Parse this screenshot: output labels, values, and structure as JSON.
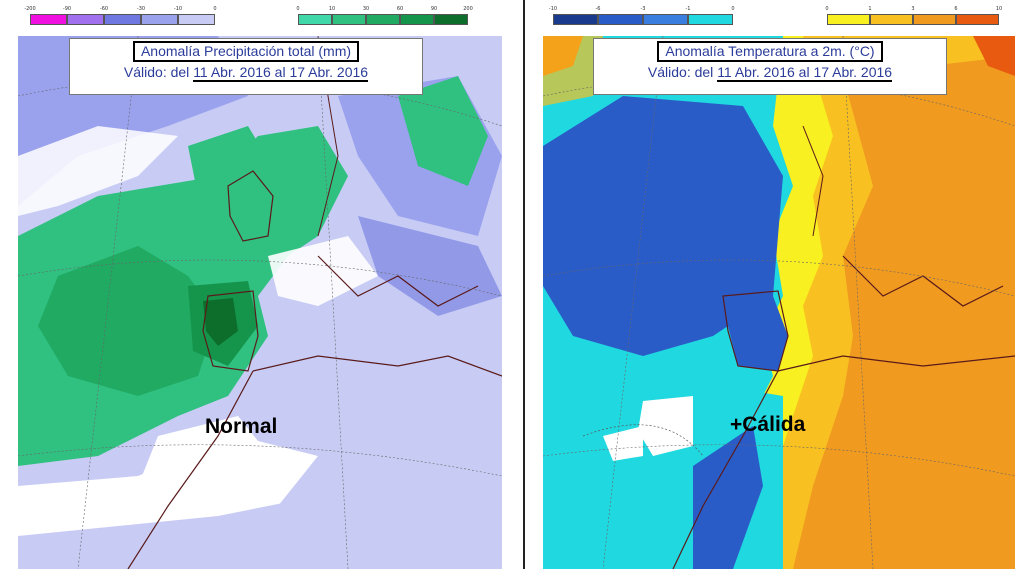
{
  "left_panel": {
    "title": "Anomalía Precipitación total (mm)",
    "valid_prefix": "Válido: del ",
    "valid_dates": "11 Abr. 2016 al 17 Abr. 2016",
    "label": "Normal",
    "legend_negative": {
      "ticks": [
        "-200",
        "-90",
        "-60",
        "-30",
        "-10",
        "0"
      ],
      "colors": [
        "#f010e0",
        "#a070ee",
        "#6e78e0",
        "#9aa2ee",
        "#c8ccf5"
      ]
    },
    "legend_positive": {
      "ticks": [
        "0",
        "10",
        "30",
        "60",
        "90",
        "200"
      ],
      "colors": [
        "#40d8a8",
        "#30c080",
        "#20aa62",
        "#15954c",
        "#0c6e2a"
      ]
    }
  },
  "right_panel": {
    "title": "Anomalía Temperatura a 2m. (°C)",
    "valid_prefix": "Válido: del ",
    "valid_dates": "11 Abr. 2016 al 17 Abr. 2016",
    "label": "+Cálida",
    "legend_negative": {
      "ticks": [
        "-10",
        "-6",
        "-3",
        "-1",
        "0"
      ],
      "colors": [
        "#1a3a8e",
        "#2a5cc8",
        "#3a7ee0",
        "#20d8e0"
      ]
    },
    "legend_positive": {
      "ticks": [
        "0",
        "1",
        "3",
        "6",
        "10"
      ],
      "colors": [
        "#f8f020",
        "#f8c020",
        "#f09a20",
        "#e85a10"
      ]
    }
  }
}
